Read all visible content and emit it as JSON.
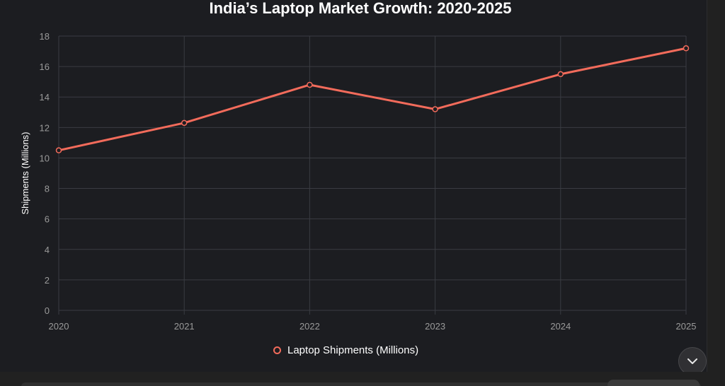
{
  "colors": {
    "series": "#f26b5b",
    "grid": "#3a3c42",
    "tick_text": "#9a9a9a",
    "title_text": "#ffffff"
  },
  "chart_data": {
    "type": "line",
    "title": "India’s Laptop Market Growth: 2020-2025",
    "xlabel": "",
    "ylabel": "Shipments (Millions)",
    "categories": [
      "2020",
      "2021",
      "2022",
      "2023",
      "2024",
      "2025"
    ],
    "y_ticks": [
      "0",
      "2",
      "4",
      "6",
      "8",
      "10",
      "12",
      "14",
      "16",
      "18"
    ],
    "ylim": [
      0,
      18
    ],
    "grid": true,
    "legend_position": "bottom",
    "series": [
      {
        "name": "Laptop Shipments (Millions)",
        "values": [
          10.5,
          12.3,
          14.8,
          13.2,
          15.5,
          17.2
        ]
      }
    ]
  },
  "controls": {
    "scroll_down_icon": "chevron-down-icon"
  }
}
